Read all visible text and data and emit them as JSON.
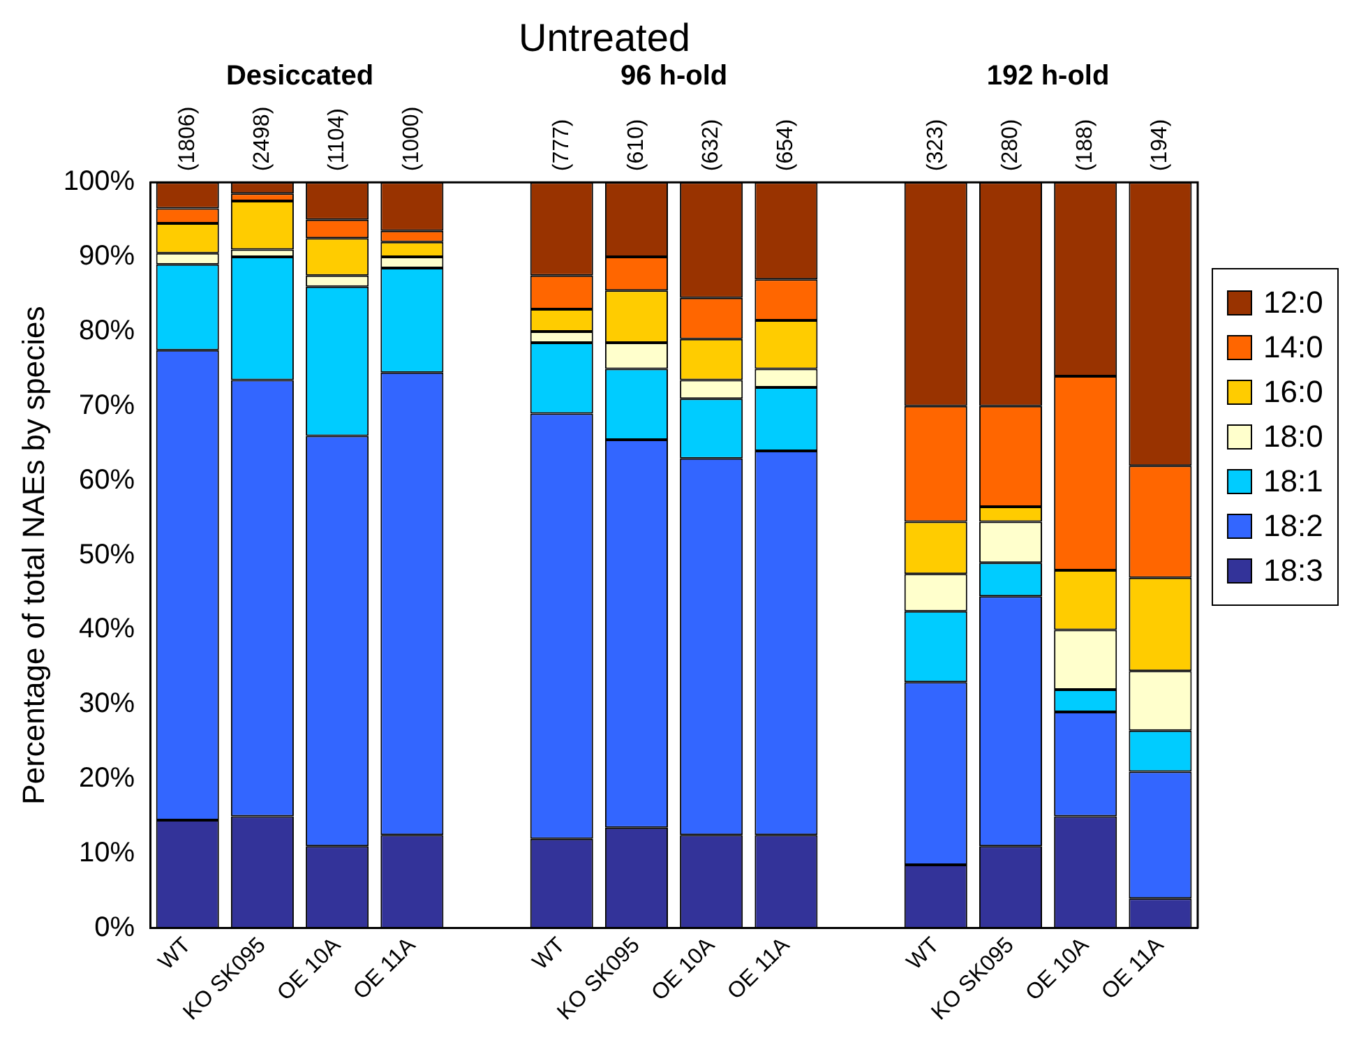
{
  "chart_data": {
    "type": "bar",
    "title": "Untreated",
    "ylabel": "Percentage of total NAEs by species",
    "stacked": true,
    "categories": [
      "WT",
      "KO SK095",
      "OE 10A",
      "OE 11A",
      null,
      "WT",
      "KO SK095",
      "OE 10A",
      "OE 11A",
      null,
      "WT",
      "KO SK095",
      "OE 10A",
      "OE 11A"
    ],
    "series": [
      {
        "name": "18:3",
        "color": "#333399",
        "values": [
          14.5,
          15,
          11,
          12.5,
          null,
          12,
          13.5,
          12.5,
          12.5,
          null,
          8.5,
          11,
          15,
          4
        ]
      },
      {
        "name": "18:2",
        "color": "#3366ff",
        "values": [
          63,
          58.5,
          55,
          62,
          null,
          57,
          52,
          50.5,
          51.5,
          null,
          24.5,
          33.5,
          14,
          17
        ]
      },
      {
        "name": "18:1",
        "color": "#00ccff",
        "values": [
          11.5,
          16.5,
          20,
          14,
          null,
          9.5,
          9.5,
          8,
          8.5,
          null,
          9.5,
          4.5,
          3,
          5.5
        ]
      },
      {
        "name": "18:0",
        "color": "#ffffcc",
        "values": [
          1.5,
          1,
          1.5,
          1.5,
          null,
          1.5,
          3.5,
          2.5,
          2.5,
          null,
          5,
          5.5,
          8,
          8
        ]
      },
      {
        "name": "16:0",
        "color": "#ffcc00",
        "values": [
          4,
          6.5,
          5,
          2,
          null,
          3,
          7,
          5.5,
          6.5,
          null,
          7,
          2,
          8,
          12.5
        ]
      },
      {
        "name": "14:0",
        "color": "#ff6600",
        "values": [
          2,
          1,
          2.5,
          1.5,
          null,
          4.5,
          4.5,
          5.5,
          5.5,
          null,
          15.5,
          13.5,
          26,
          15
        ]
      },
      {
        "name": "12:0",
        "color": "#993300",
        "values": [
          3.5,
          1.5,
          5,
          6.5,
          null,
          12.5,
          10,
          15.5,
          13,
          null,
          30,
          30,
          26,
          38
        ]
      }
    ],
    "annotations": [
      "Desiccated",
      "96 h-old",
      "192 h-old",
      "(1806)",
      "(2498)",
      "(1104)",
      "(1000)",
      "(777)",
      "(610)",
      "(632)",
      "(654)",
      "(323)",
      "(280)",
      "(188)",
      "(194)"
    ],
    "ylim": [
      0,
      100
    ],
    "yticks": [
      {
        "value": 0,
        "label": "0%"
      },
      {
        "value": 10,
        "label": "10%"
      },
      {
        "value": 20,
        "label": "20%"
      },
      {
        "value": 30,
        "label": "30%"
      },
      {
        "value": 40,
        "label": "40%"
      },
      {
        "value": 50,
        "label": "50%"
      },
      {
        "value": 60,
        "label": "60%"
      },
      {
        "value": 70,
        "label": "70%"
      },
      {
        "value": 80,
        "label": "80%"
      },
      {
        "value": 90,
        "label": "90%"
      },
      {
        "value": 100,
        "label": "100%"
      }
    ],
    "grid": false,
    "legend": "right"
  }
}
